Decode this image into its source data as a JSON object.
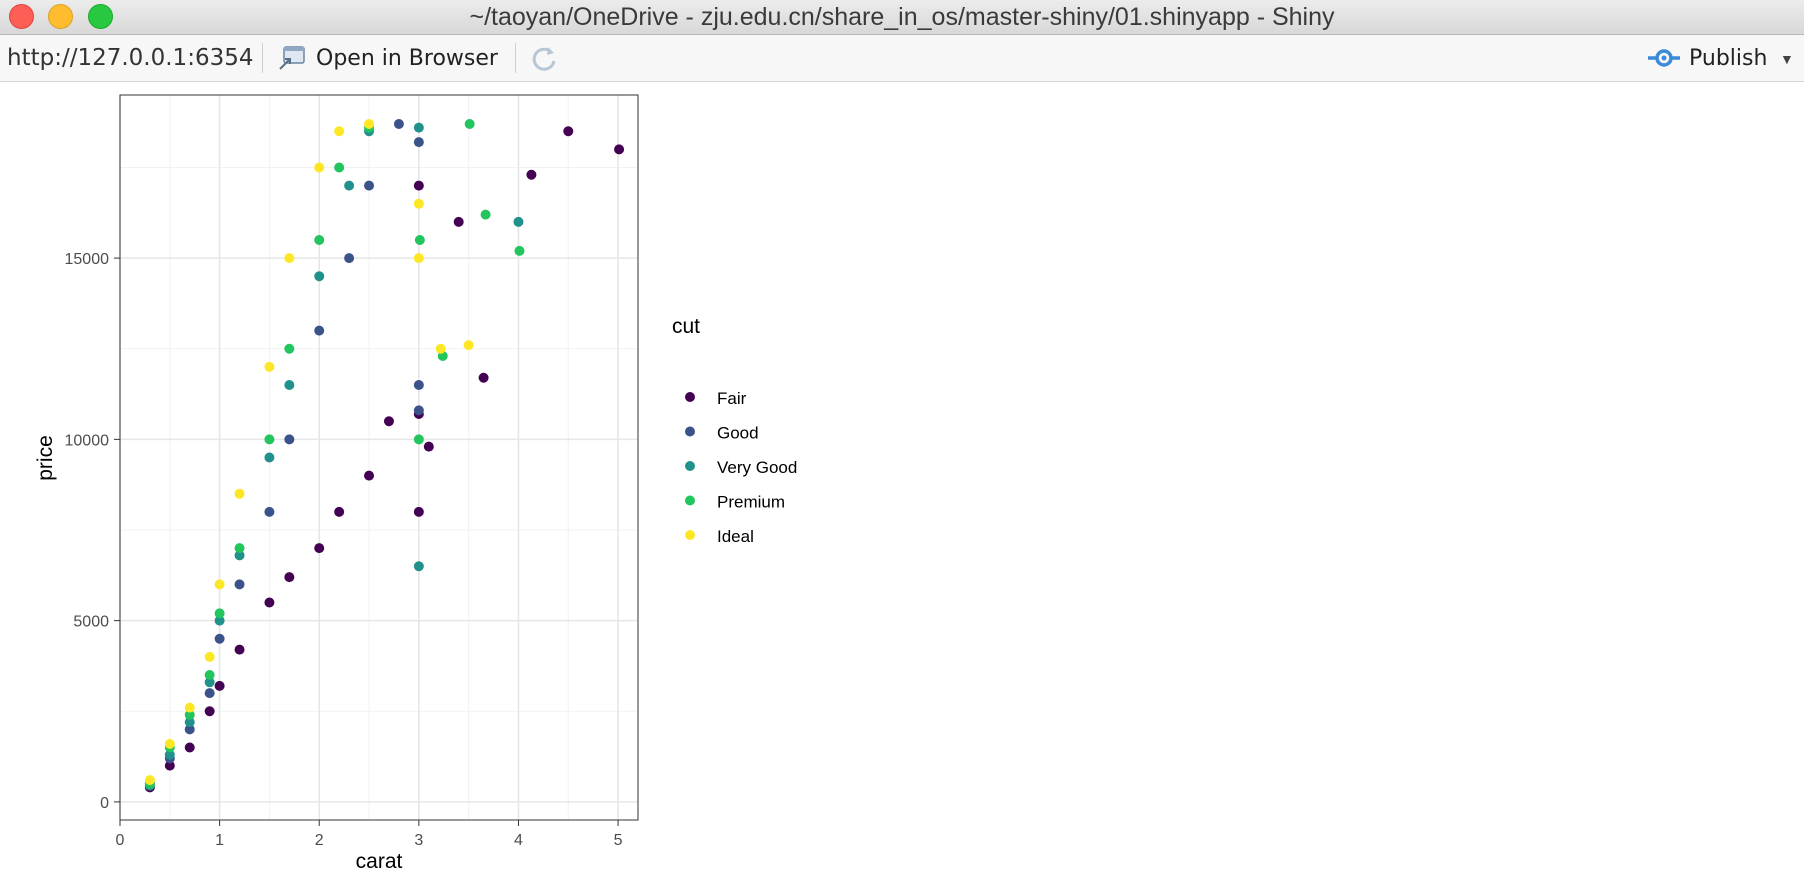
{
  "window": {
    "title": "~/taoyan/OneDrive - zju.edu.cn/share_in_os/master-shiny/01.shinyapp - Shiny"
  },
  "toolbar": {
    "url": "http://127.0.0.1:6354",
    "open_label": "Open in Browser",
    "publish_label": "Publish",
    "icons": [
      "open-in-browser-icon",
      "refresh-icon",
      "publish-icon",
      "chevron-down-icon"
    ]
  },
  "chart_data": {
    "type": "scatter",
    "title": "",
    "xlabel": "carat",
    "ylabel": "price",
    "xlim": [
      0,
      5.2
    ],
    "ylim": [
      -500,
      19500
    ],
    "xticks": [
      "0",
      "1",
      "2",
      "3",
      "4",
      "5"
    ],
    "yticks": [
      "0",
      "5000",
      "10000",
      "15000"
    ],
    "grid": true,
    "legend": {
      "title": "cut",
      "position": "right",
      "entries": [
        "Fair",
        "Good",
        "Very Good",
        "Premium",
        "Ideal"
      ]
    },
    "series": [
      {
        "name": "Fair",
        "color": "#440154",
        "points": [
          [
            0.3,
            400
          ],
          [
            0.5,
            1000
          ],
          [
            0.7,
            1500
          ],
          [
            0.9,
            2500
          ],
          [
            1.0,
            3200
          ],
          [
            1.2,
            4200
          ],
          [
            1.5,
            5500
          ],
          [
            1.7,
            6200
          ],
          [
            2.0,
            7000
          ],
          [
            2.2,
            8000
          ],
          [
            2.5,
            9000
          ],
          [
            2.7,
            10500
          ],
          [
            3.0,
            8000
          ],
          [
            3.0,
            10700
          ],
          [
            3.0,
            17000
          ],
          [
            3.1,
            9800
          ],
          [
            3.4,
            16000
          ],
          [
            3.65,
            11700
          ],
          [
            4.13,
            17300
          ],
          [
            4.5,
            18500
          ],
          [
            5.01,
            18000
          ]
        ]
      },
      {
        "name": "Good",
        "color": "#3b528b",
        "points": [
          [
            0.3,
            500
          ],
          [
            0.5,
            1200
          ],
          [
            0.7,
            2000
          ],
          [
            0.9,
            3000
          ],
          [
            1.0,
            4500
          ],
          [
            1.2,
            6000
          ],
          [
            1.5,
            8000
          ],
          [
            1.7,
            10000
          ],
          [
            2.0,
            13000
          ],
          [
            2.3,
            15000
          ],
          [
            2.5,
            17000
          ],
          [
            2.8,
            18700
          ],
          [
            3.0,
            18200
          ],
          [
            3.0,
            11500
          ],
          [
            3.0,
            10800
          ]
        ]
      },
      {
        "name": "Very Good",
        "color": "#21918c",
        "points": [
          [
            0.3,
            450
          ],
          [
            0.5,
            1300
          ],
          [
            0.7,
            2200
          ],
          [
            0.9,
            3300
          ],
          [
            1.0,
            5000
          ],
          [
            1.2,
            6800
          ],
          [
            1.5,
            9500
          ],
          [
            1.7,
            11500
          ],
          [
            2.0,
            14500
          ],
          [
            2.3,
            17000
          ],
          [
            2.5,
            18500
          ],
          [
            3.0,
            6500
          ],
          [
            3.0,
            18600
          ],
          [
            4.0,
            16000
          ]
        ]
      },
      {
        "name": "Premium",
        "color": "#22c55e",
        "points": [
          [
            0.3,
            500
          ],
          [
            0.5,
            1500
          ],
          [
            0.7,
            2400
          ],
          [
            0.9,
            3500
          ],
          [
            1.0,
            5200
          ],
          [
            1.2,
            7000
          ],
          [
            1.5,
            10000
          ],
          [
            1.7,
            12500
          ],
          [
            2.0,
            15500
          ],
          [
            2.2,
            17500
          ],
          [
            2.5,
            18600
          ],
          [
            3.0,
            10000
          ],
          [
            3.01,
            15500
          ],
          [
            3.24,
            12300
          ],
          [
            3.51,
            18700
          ],
          [
            3.67,
            16200
          ],
          [
            4.01,
            15200
          ]
        ]
      },
      {
        "name": "Ideal",
        "color": "#fde725",
        "points": [
          [
            0.3,
            600
          ],
          [
            0.5,
            1600
          ],
          [
            0.7,
            2600
          ],
          [
            0.9,
            4000
          ],
          [
            1.0,
            6000
          ],
          [
            1.2,
            8500
          ],
          [
            1.5,
            12000
          ],
          [
            1.7,
            15000
          ],
          [
            2.0,
            17500
          ],
          [
            2.2,
            18500
          ],
          [
            2.5,
            18700
          ],
          [
            3.0,
            15000
          ],
          [
            3.0,
            16500
          ],
          [
            3.22,
            12500
          ],
          [
            3.5,
            12600
          ]
        ]
      }
    ]
  }
}
